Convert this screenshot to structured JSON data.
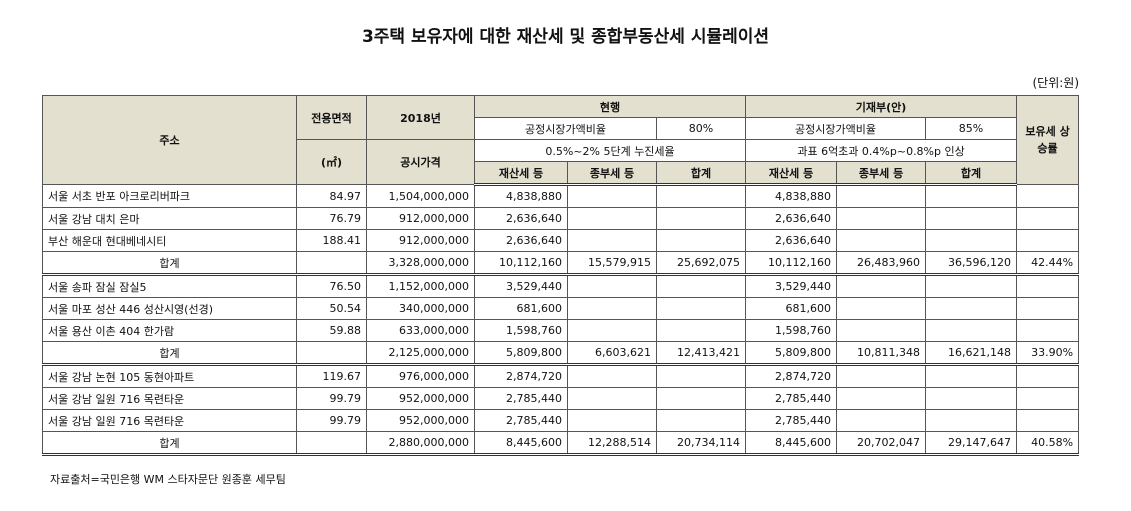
{
  "title": "3주택 보유자에 대한 재산세 및 종합부동산세 시뮬레이션",
  "unit": "(단위:원)",
  "header": {
    "address": "주소",
    "area": "전용면적",
    "area_unit": "(㎡)",
    "year": "2018년",
    "price": "공시가격",
    "current": "현행",
    "ratio_label": "공정시장가액비율",
    "current_ratio": "80%",
    "current_rate": "0.5%~2% 5단계 누진세율",
    "proposal": "기재부(안)",
    "proposal_ratio": "85%",
    "proposal_rate": "과표 6억초과 0.4%p~0.8%p 인상",
    "property_tax": "재산세 등",
    "comprehensive_tax": "종부세 등",
    "total": "합계",
    "increase": "보유세 상승률"
  },
  "rows": [
    [
      "서울 서초 반포 아크로리버파크",
      "84.97",
      "1,504,000,000",
      "4,838,880",
      null,
      null,
      "4,838,880",
      null,
      null,
      null
    ],
    [
      "서울 강남 대치 은마",
      "76.79",
      "912,000,000",
      "2,636,640",
      null,
      null,
      "2,636,640",
      null,
      null,
      null
    ],
    [
      "부산 해운대 현대베네시티",
      "188.41",
      "912,000,000",
      "2,636,640",
      null,
      null,
      "2,636,640",
      null,
      null,
      null
    ],
    [
      "합계",
      null,
      "3,328,000,000",
      "10,112,160",
      "15,579,915",
      "25,692,075",
      "10,112,160",
      "26,483,960",
      "36,596,120",
      "42.44%"
    ],
    [
      "서울 송파 잠실 잠실5",
      "76.50",
      "1,152,000,000",
      "3,529,440",
      null,
      null,
      "3,529,440",
      null,
      null,
      null
    ],
    [
      "서울 마포 성산 446 성산시영(선경)",
      "50.54",
      "340,000,000",
      "681,600",
      null,
      null,
      "681,600",
      null,
      null,
      null
    ],
    [
      "서울 용산 이촌 404 한가람",
      "59.88",
      "633,000,000",
      "1,598,760",
      null,
      null,
      "1,598,760",
      null,
      null,
      null
    ],
    [
      "합계",
      null,
      "2,125,000,000",
      "5,809,800",
      "6,603,621",
      "12,413,421",
      "5,809,800",
      "10,811,348",
      "16,621,148",
      "33.90%"
    ],
    [
      "서울 강남 논현 105 동현아파트",
      "119.67",
      "976,000,000",
      "2,874,720",
      null,
      null,
      "2,874,720",
      null,
      null,
      null
    ],
    [
      "서울 강남 일원 716 목련타운",
      "99.79",
      "952,000,000",
      "2,785,440",
      null,
      null,
      "2,785,440",
      null,
      null,
      null
    ],
    [
      "서울 강남 일원 716 목련타운",
      "99.79",
      "952,000,000",
      "2,785,440",
      null,
      null,
      "2,785,440",
      null,
      null,
      null
    ],
    [
      "합계",
      null,
      "2,880,000,000",
      "8,445,600",
      "12,288,514",
      "20,734,114",
      "8,445,600",
      "20,702,047",
      "29,147,647",
      "40.58%"
    ]
  ],
  "source": "자료출처=국민은행 WM 스타자문단 원종훈 세무팀"
}
